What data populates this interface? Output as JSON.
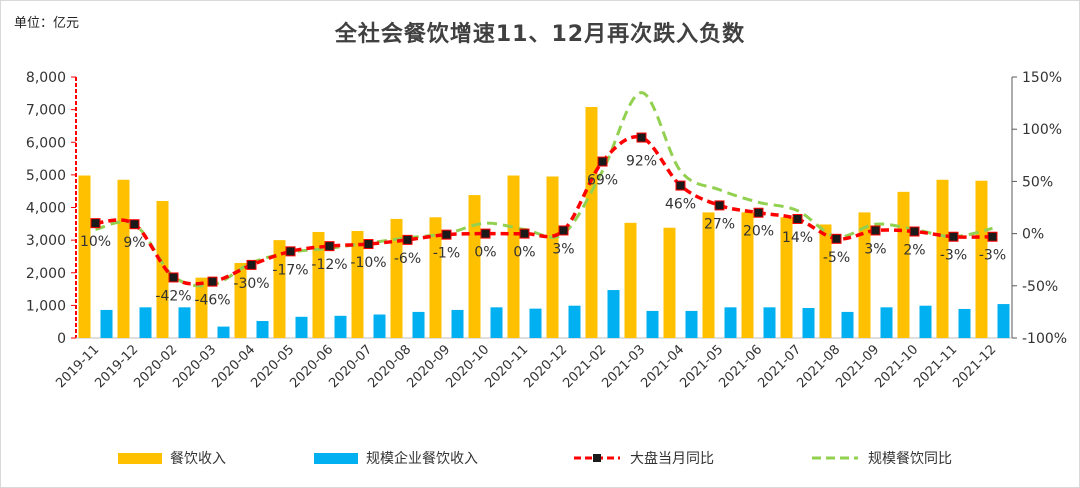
{
  "unit_label": "单位：亿元",
  "colors": {
    "bar1": "#FFC000",
    "bar2": "#00B0F0",
    "line1": "#FF0000",
    "line2": "#92D050",
    "marker": "#1a1a1a"
  },
  "chart_data": {
    "type": "bar",
    "title": "全社会餐饮增速11、12月再次跌入负数",
    "categories": [
      "2019-11",
      "2019-12",
      "2020-02",
      "2020-03",
      "2020-04",
      "2020-05",
      "2020-06",
      "2020-07",
      "2020-08",
      "2020-09",
      "2020-10",
      "2020-11",
      "2020-12",
      "2021-02",
      "2021-03",
      "2021-04",
      "2021-05",
      "2021-06",
      "2021-07",
      "2021-08",
      "2021-09",
      "2021-10",
      "2021-11",
      "2021-12"
    ],
    "y_left": {
      "ylim": [
        0,
        8000
      ],
      "ticks": [
        "0",
        "1,000",
        "2,000",
        "3,000",
        "4,000",
        "5,000",
        "6,000",
        "7,000",
        "8,000"
      ]
    },
    "y_right": {
      "ylim": [
        -100,
        150
      ],
      "ticks": [
        "-100%",
        "-50%",
        "0%",
        "50%",
        "100%",
        "150%"
      ]
    },
    "series": [
      {
        "name": "餐饮收入",
        "kind": "bar",
        "axis": "left",
        "values": [
          4980,
          4850,
          4200,
          1850,
          2300,
          3000,
          3250,
          3280,
          3650,
          3700,
          4380,
          4980,
          4950,
          7080,
          3530,
          3380,
          3850,
          3850,
          3700,
          3480,
          3850,
          4480,
          4850,
          4820
        ]
      },
      {
        "name": "规模企业餐饮收入",
        "kind": "bar",
        "axis": "left",
        "values": [
          860,
          940,
          940,
          350,
          520,
          650,
          680,
          720,
          800,
          860,
          940,
          900,
          990,
          1470,
          830,
          830,
          940,
          940,
          920,
          800,
          940,
          990,
          890,
          1040
        ]
      },
      {
        "name": "大盘当月同比",
        "kind": "line",
        "axis": "right",
        "values": [
          10,
          9,
          -42,
          -46,
          -30,
          -17,
          -12,
          -10,
          -6,
          -1,
          0,
          0,
          3,
          69,
          92,
          46,
          27,
          20,
          14,
          -5,
          3,
          2,
          -3,
          -3
        ],
        "labels": [
          "10%",
          "9%",
          "-42%",
          "-46%",
          "-30%",
          "-17%",
          "-12%",
          "-10%",
          "-6%",
          "-1%",
          "0%",
          "0%",
          "3%",
          "69%",
          "92%",
          "46%",
          "27%",
          "20%",
          "14%",
          "-5%",
          "3%",
          "2%",
          "-3%",
          "-3%"
        ]
      },
      {
        "name": "规模餐饮同比",
        "kind": "line",
        "axis": "right",
        "values": [
          4,
          9,
          -41,
          -49,
          -28,
          -18,
          -14,
          -9,
          -4,
          0,
          10,
          4,
          0,
          60,
          135,
          60,
          42,
          30,
          22,
          -3,
          9,
          4,
          -3,
          5
        ]
      }
    ]
  }
}
